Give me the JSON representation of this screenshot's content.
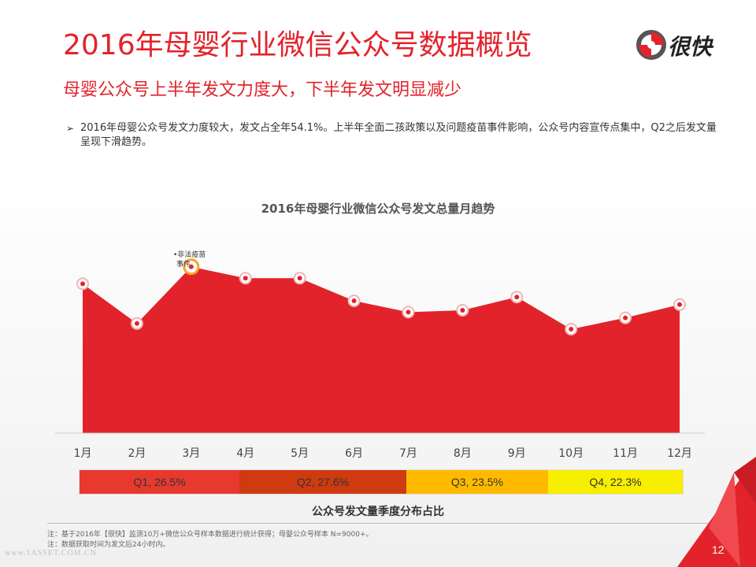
{
  "header": {
    "title": "2016年母婴行业微信公众号数据概览",
    "subtitle": "母婴公众号上半年发文力度大，下半年发文明显减少"
  },
  "logo": {
    "text": "很快",
    "icon": "kuai-logo-icon",
    "colors": [
      "#e2232b",
      "#555555"
    ]
  },
  "bullet": {
    "marker": "➢",
    "text": "2016年母婴公众号发文力度较大，发文占全年54.1%。上半年全面二孩政策以及问题疫苗事件影响，公众号内容宣传点集中，Q2之后发文量呈现下滑趋势。"
  },
  "chart_data": [
    {
      "type": "area",
      "title": "2016年母婴行业微信公众号发文总量月趋势",
      "categories": [
        "1月",
        "2月",
        "3月",
        "4月",
        "5月",
        "6月",
        "7月",
        "8月",
        "9月",
        "10月",
        "11月",
        "12月"
      ],
      "series": [
        {
          "values": [
            0.79,
            0.58,
            0.88,
            0.82,
            0.82,
            0.7,
            0.64,
            0.65,
            0.72,
            0.55,
            0.61,
            0.68
          ]
        }
      ],
      "y_note": "values relative (no y-axis printed); 0 = baseline, 1 = top",
      "grid": false,
      "colors": {
        "fill": "#e2232b",
        "marker_fill": "#e2232b",
        "highlight": "#f5a623"
      },
      "annotation": {
        "text_line1": "•非法疫苗",
        "text_line2": "事件",
        "category": "3月"
      }
    },
    {
      "type": "bar",
      "orientation": "stacked-horizontal",
      "title": "公众号发文量季度分布占比",
      "categories": [
        "Q1",
        "Q2",
        "Q3",
        "Q4"
      ],
      "values": [
        26.5,
        27.6,
        23.5,
        22.3
      ],
      "labels": [
        "Q1, 26.5%",
        "Q2, 27.6%",
        "Q3, 23.5%",
        "Q4, 22.3%"
      ],
      "colors": [
        "#e8392f",
        "#cf3a10",
        "#ffba00",
        "#f7ee00"
      ]
    }
  ],
  "footer": {
    "note1": "注：基于2016年【很快】监测10万+微信公众号样本数据进行统计获得；母婴公众号样本 N=9000+。",
    "note2": "注：数据获取时间为发文后24小时内。",
    "watermark": "www.1ASSET.COM.CN",
    "page": "12"
  }
}
